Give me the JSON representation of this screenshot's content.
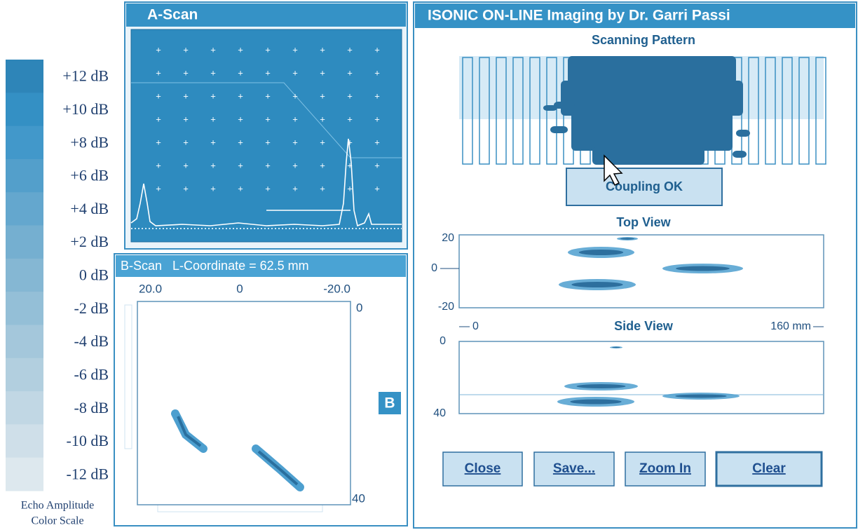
{
  "color_scale": {
    "labels": [
      "+12 dB",
      "+10 dB",
      "+8 dB",
      "+6 dB",
      "+4 dB",
      "+2 dB",
      "0 dB",
      "-2 dB",
      "-4 dB",
      "-6 dB",
      "-8 dB",
      "-10 dB",
      "-12 dB"
    ],
    "caption": [
      "Echo Amplitude",
      "Color Scale"
    ]
  },
  "a_scan": {
    "title": "A-Scan"
  },
  "b_scan": {
    "title": "B-Scan   L-Coordinate = 62.5 mm",
    "x_labels": [
      "20.0",
      "0",
      "-20.0"
    ],
    "y_labels": [
      "0",
      "40"
    ],
    "badge": "B"
  },
  "main": {
    "title": "ISONIC ON-LINE Imaging by Dr. Garri Passi",
    "scanning_pattern": {
      "title": "Scanning Pattern",
      "status": "Coupling OK"
    },
    "top_view": {
      "title": "Top View",
      "y_labels": [
        "20",
        "0",
        "-20"
      ]
    },
    "side_view": {
      "title": "Side View",
      "x_start": "0",
      "x_end": "160 mm",
      "y_labels": [
        "0",
        "40"
      ]
    },
    "buttons": [
      "Close",
      "Save...",
      "Zoom In",
      "Clear"
    ]
  }
}
